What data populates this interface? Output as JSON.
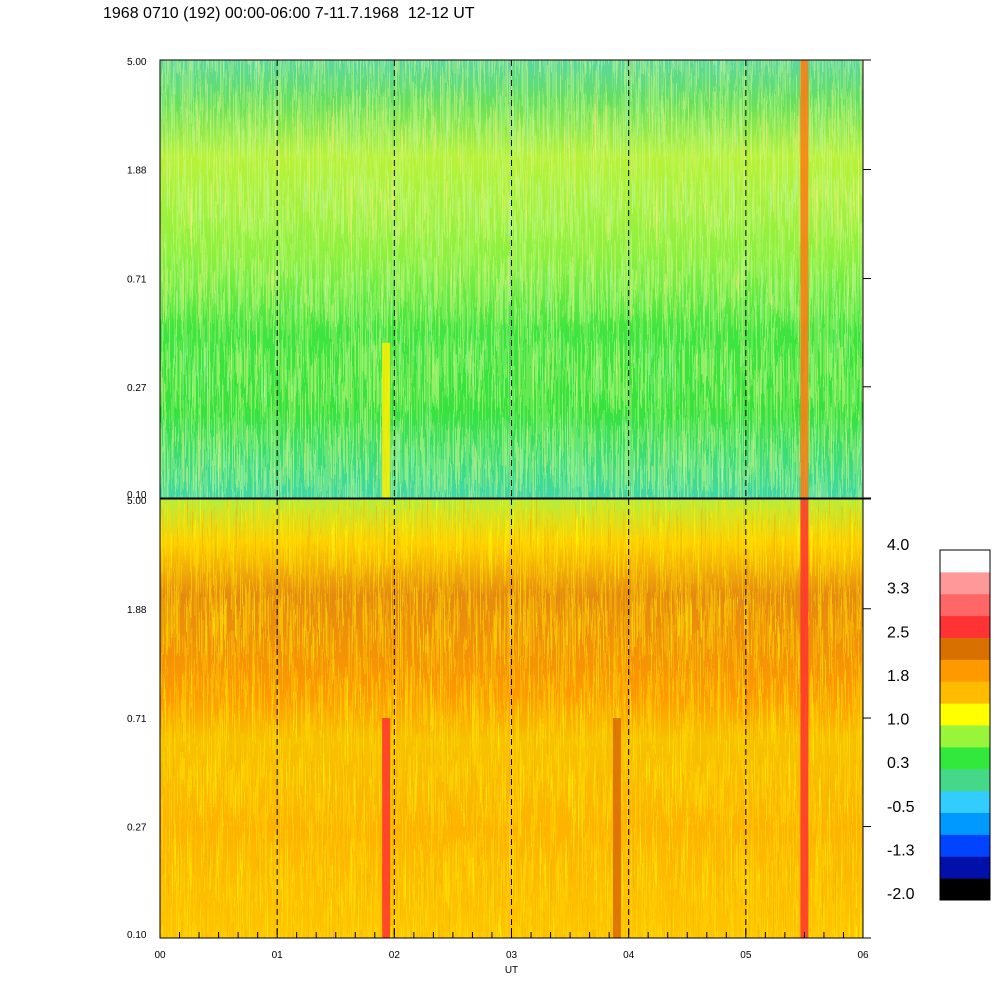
{
  "title": "1968 0710 (192) 00:00-06:00 7-11.7.1968  12-12 UT",
  "chart_data": [
    {
      "type": "heatmap",
      "panel": "upper",
      "ylabel": "",
      "yticks": [
        "5.00",
        "1.88",
        "0.71",
        "0.27",
        "0.10"
      ],
      "ylim": [
        0.1,
        5.0
      ],
      "yscale": "log",
      "x_range_hours": [
        0,
        6
      ],
      "vertical_dashed_markers_hours": [
        1,
        2,
        3,
        4,
        5
      ],
      "dominant_levels": [
        "green",
        "yellow-green",
        "cyan"
      ],
      "features": [
        {
          "x_hours": 1.93,
          "y_range": [
            0.1,
            0.4
          ],
          "level": "yellow"
        },
        {
          "x_hours": 5.5,
          "y_range": [
            0.1,
            5.0
          ],
          "level": "orange"
        }
      ]
    },
    {
      "type": "heatmap",
      "panel": "lower",
      "ylabel": "",
      "yticks": [
        "5.00",
        "1.88",
        "0.71",
        "0.27",
        "0.10"
      ],
      "ylim": [
        0.1,
        5.0
      ],
      "yscale": "log",
      "x_range_hours": [
        0,
        6
      ],
      "xticks": [
        "00",
        "01",
        "02",
        "03",
        "04",
        "05",
        "06"
      ],
      "xlabel": "UT",
      "vertical_dashed_markers_hours": [
        1,
        2,
        3,
        4,
        5
      ],
      "dominant_levels": [
        "orange",
        "yellow",
        "dark-orange"
      ],
      "features": [
        {
          "x_hours": 1.93,
          "y_range": [
            0.1,
            0.71
          ],
          "level": "red"
        },
        {
          "x_hours": 3.9,
          "y_range": [
            0.1,
            0.71
          ],
          "level": "dark-orange"
        },
        {
          "x_hours": 5.5,
          "y_range": [
            0.1,
            5.0
          ],
          "level": "red"
        }
      ]
    }
  ],
  "colorbar": {
    "labels": [
      "4.0",
      "3.3",
      "2.5",
      "1.8",
      "1.0",
      "0.3",
      "-0.5",
      "-1.3",
      "-2.0"
    ],
    "colors": [
      "#000000",
      "#0010a8",
      "#0044ff",
      "#0099ff",
      "#33ccff",
      "#44d888",
      "#33e83d",
      "#99f53a",
      "#ffff00",
      "#ffbb00",
      "#ff9900",
      "#d87000",
      "#ff3333",
      "#ff6666",
      "#ff9999",
      "#ffffff"
    ]
  }
}
